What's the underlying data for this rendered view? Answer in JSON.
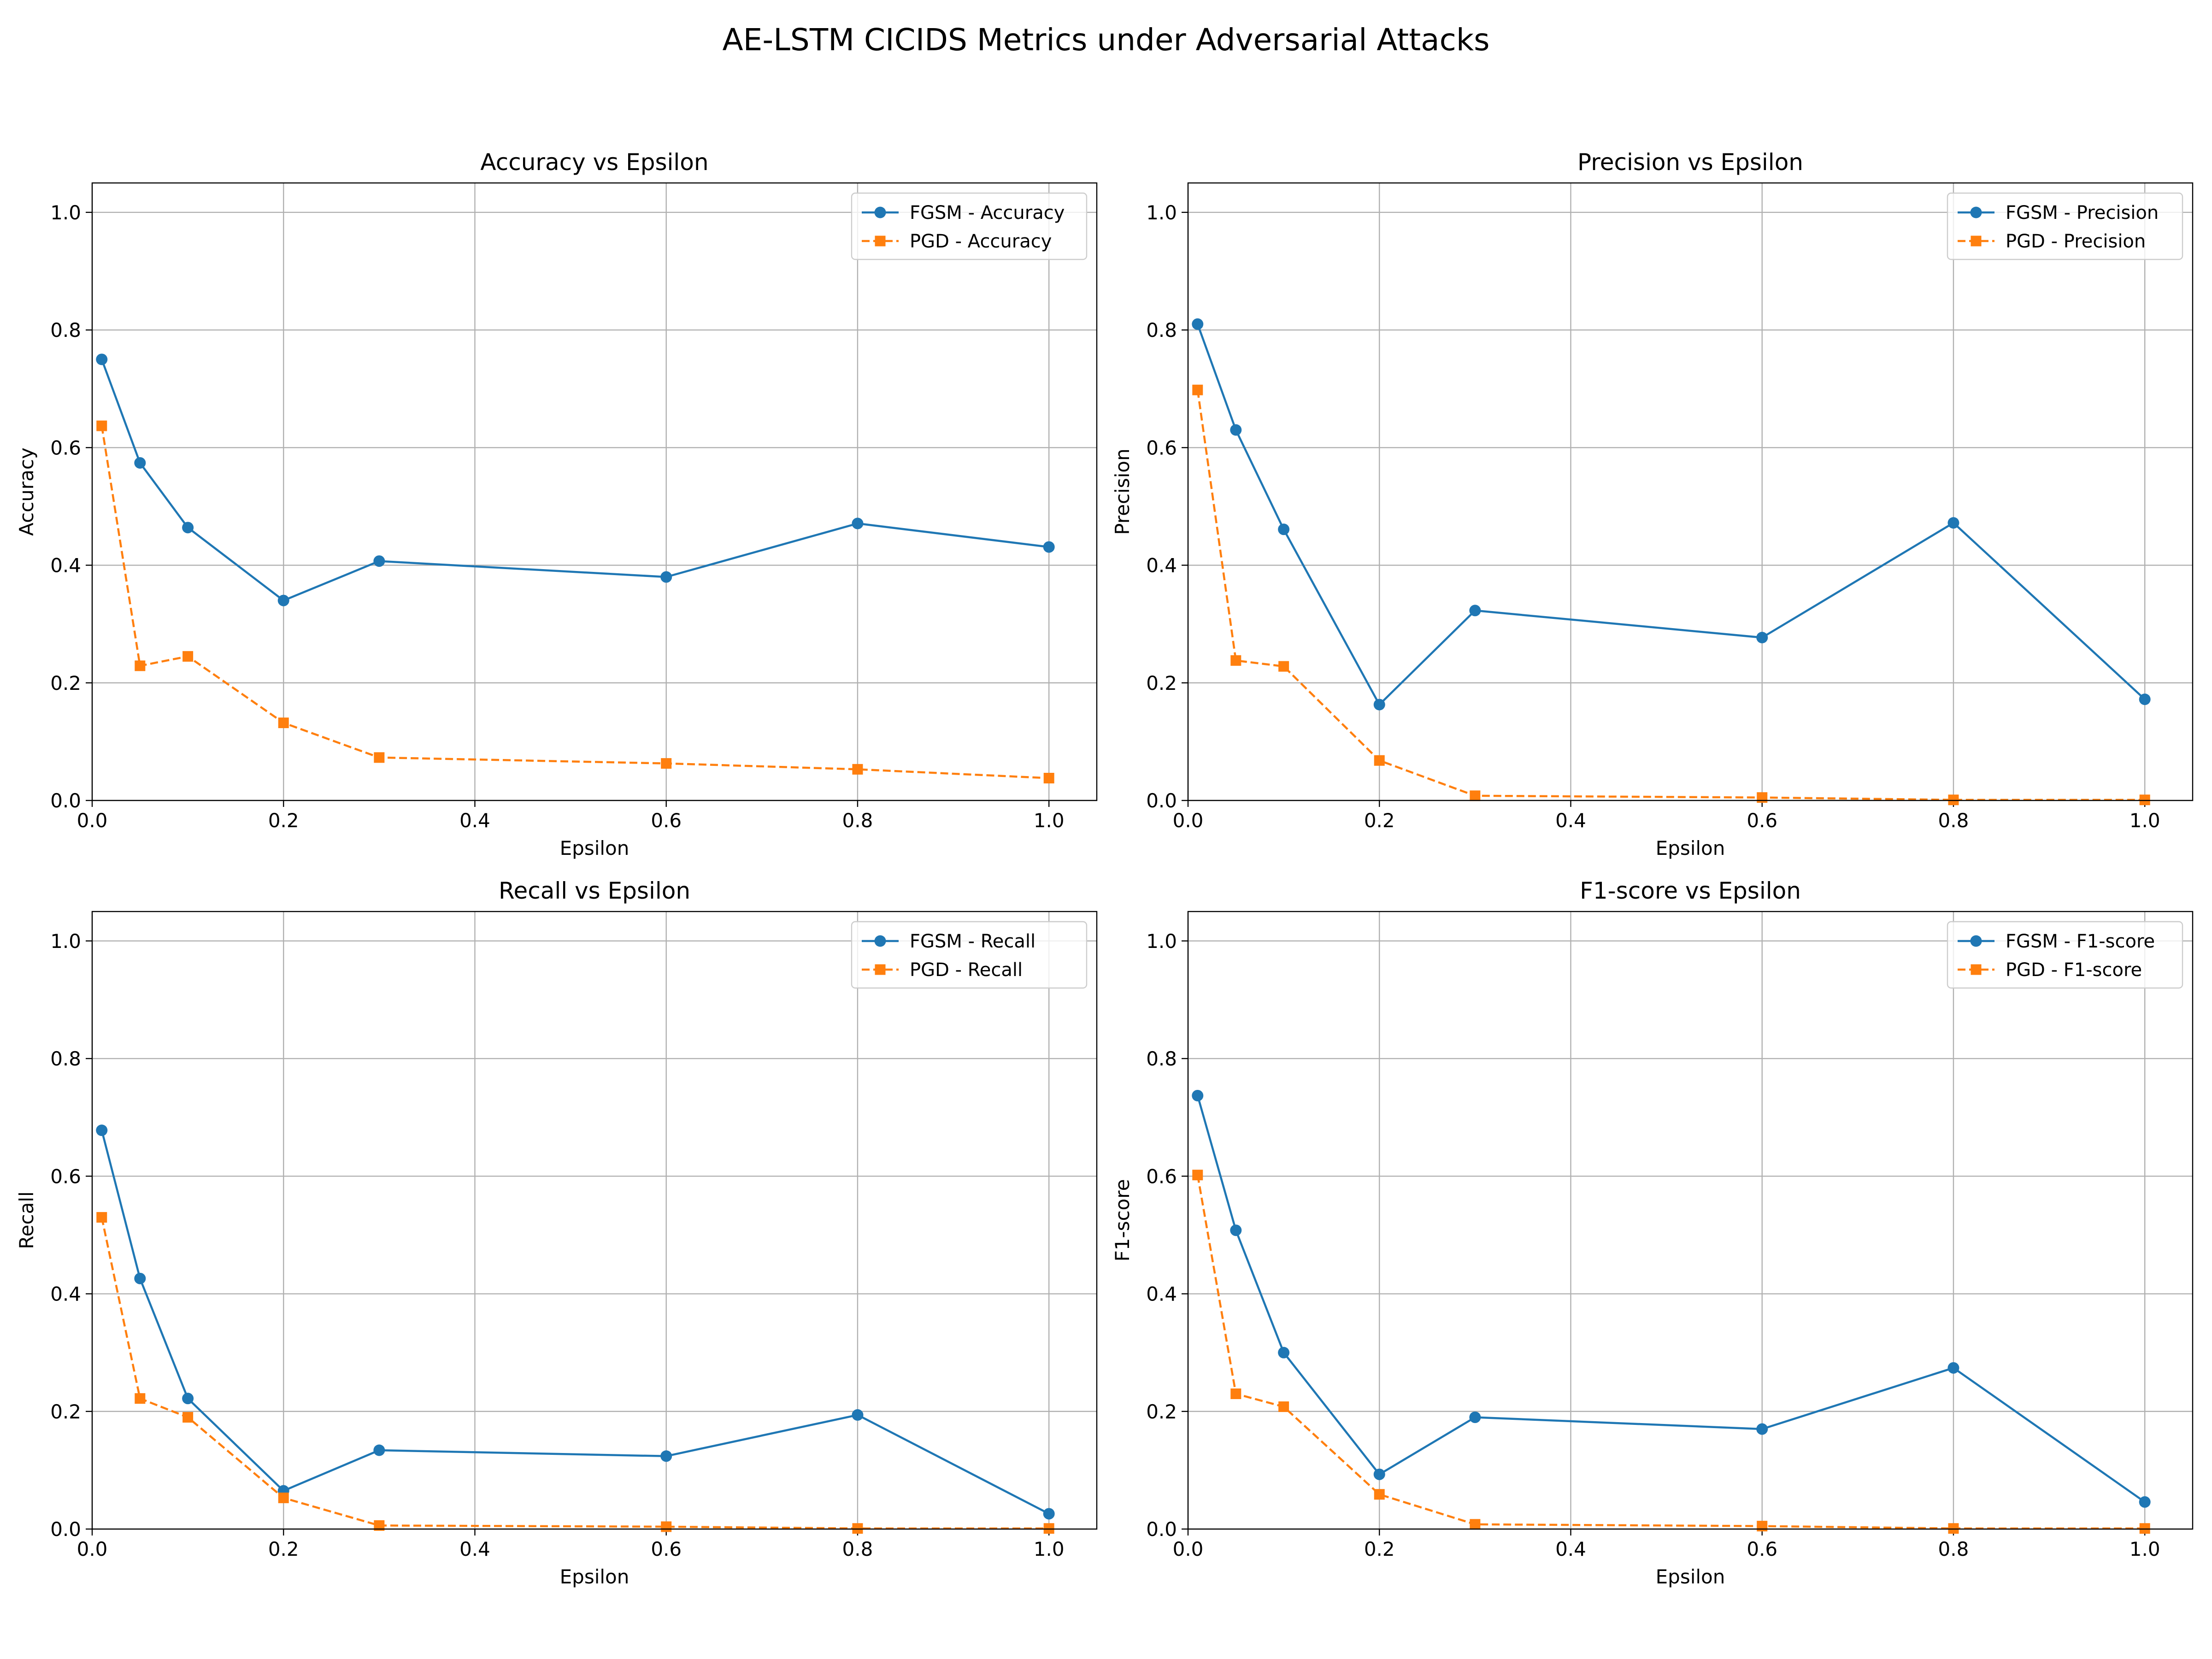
{
  "figure": {
    "title": "AE-LSTM CICIDS Metrics under Adversarial Attacks"
  },
  "colors": {
    "fgsm": "#1f77b4",
    "pgd": "#ff7f0e",
    "grid": "#b0b0b0",
    "axes": "#000000"
  },
  "chart_data": [
    {
      "type": "line",
      "title": "Accuracy vs Epsilon",
      "xlabel": "Epsilon",
      "ylabel": "Accuracy",
      "xlim": [
        0,
        1.05
      ],
      "ylim": [
        0,
        1.05
      ],
      "xticks": [
        0.0,
        0.2,
        0.4,
        0.6,
        0.8,
        1.0
      ],
      "xtick_labels": [
        "0.0",
        "0.2",
        "0.4",
        "0.6",
        "0.8",
        "1.0"
      ],
      "yticks": [
        0.0,
        0.2,
        0.4,
        0.6,
        0.8,
        1.0
      ],
      "ytick_labels": [
        "0.0",
        "0.2",
        "0.4",
        "0.6",
        "0.8",
        "1.0"
      ],
      "grid": true,
      "legend": "top-right",
      "x": [
        0.01,
        0.05,
        0.1,
        0.2,
        0.3,
        0.6,
        0.8,
        1.0
      ],
      "series": [
        {
          "name": "FGSM - Accuracy",
          "color": "#1f77b4",
          "marker": "circle",
          "linestyle": "solid",
          "values": [
            0.75,
            0.574,
            0.464,
            0.34,
            0.407,
            0.38,
            0.471,
            0.431
          ]
        },
        {
          "name": "PGD - Accuracy",
          "color": "#ff7f0e",
          "marker": "square",
          "linestyle": "dashed",
          "values": [
            0.637,
            0.229,
            0.245,
            0.132,
            0.073,
            0.063,
            0.053,
            0.038
          ]
        }
      ]
    },
    {
      "type": "line",
      "title": "Precision vs Epsilon",
      "xlabel": "Epsilon",
      "ylabel": "Precision",
      "xlim": [
        0,
        1.05
      ],
      "ylim": [
        0,
        1.05
      ],
      "xticks": [
        0.0,
        0.2,
        0.4,
        0.6,
        0.8,
        1.0
      ],
      "xtick_labels": [
        "0.0",
        "0.2",
        "0.4",
        "0.6",
        "0.8",
        "1.0"
      ],
      "yticks": [
        0.0,
        0.2,
        0.4,
        0.6,
        0.8,
        1.0
      ],
      "ytick_labels": [
        "0.0",
        "0.2",
        "0.4",
        "0.6",
        "0.8",
        "1.0"
      ],
      "grid": true,
      "legend": "top-right",
      "x": [
        0.01,
        0.05,
        0.1,
        0.2,
        0.3,
        0.6,
        0.8,
        1.0
      ],
      "series": [
        {
          "name": "FGSM - Precision",
          "color": "#1f77b4",
          "marker": "circle",
          "linestyle": "solid",
          "values": [
            0.81,
            0.63,
            0.461,
            0.163,
            0.323,
            0.277,
            0.472,
            0.172
          ]
        },
        {
          "name": "PGD - Precision",
          "color": "#ff7f0e",
          "marker": "square",
          "linestyle": "dashed",
          "values": [
            0.698,
            0.238,
            0.228,
            0.068,
            0.008,
            0.005,
            0.001,
            0.001
          ]
        }
      ]
    },
    {
      "type": "line",
      "title": "Recall vs Epsilon",
      "xlabel": "Epsilon",
      "ylabel": "Recall",
      "xlim": [
        0,
        1.05
      ],
      "ylim": [
        0,
        1.05
      ],
      "xticks": [
        0.0,
        0.2,
        0.4,
        0.6,
        0.8,
        1.0
      ],
      "xtick_labels": [
        "0.0",
        "0.2",
        "0.4",
        "0.6",
        "0.8",
        "1.0"
      ],
      "yticks": [
        0.0,
        0.2,
        0.4,
        0.6,
        0.8,
        1.0
      ],
      "ytick_labels": [
        "0.0",
        "0.2",
        "0.4",
        "0.6",
        "0.8",
        "1.0"
      ],
      "grid": true,
      "legend": "top-right",
      "x": [
        0.01,
        0.05,
        0.1,
        0.2,
        0.3,
        0.6,
        0.8,
        1.0
      ],
      "series": [
        {
          "name": "FGSM - Recall",
          "color": "#1f77b4",
          "marker": "circle",
          "linestyle": "solid",
          "values": [
            0.678,
            0.426,
            0.222,
            0.065,
            0.134,
            0.124,
            0.194,
            0.026
          ]
        },
        {
          "name": "PGD - Recall",
          "color": "#ff7f0e",
          "marker": "square",
          "linestyle": "dashed",
          "values": [
            0.53,
            0.222,
            0.19,
            0.053,
            0.006,
            0.004,
            0.001,
            0.001
          ]
        }
      ]
    },
    {
      "type": "line",
      "title": "F1-score vs Epsilon",
      "xlabel": "Epsilon",
      "ylabel": "F1-score",
      "xlim": [
        0,
        1.05
      ],
      "ylim": [
        0,
        1.05
      ],
      "xticks": [
        0.0,
        0.2,
        0.4,
        0.6,
        0.8,
        1.0
      ],
      "xtick_labels": [
        "0.0",
        "0.2",
        "0.4",
        "0.6",
        "0.8",
        "1.0"
      ],
      "yticks": [
        0.0,
        0.2,
        0.4,
        0.6,
        0.8,
        1.0
      ],
      "ytick_labels": [
        "0.0",
        "0.2",
        "0.4",
        "0.6",
        "0.8",
        "1.0"
      ],
      "grid": true,
      "legend": "top-right",
      "x": [
        0.01,
        0.05,
        0.1,
        0.2,
        0.3,
        0.6,
        0.8,
        1.0
      ],
      "series": [
        {
          "name": "FGSM - F1-score",
          "color": "#1f77b4",
          "marker": "circle",
          "linestyle": "solid",
          "values": [
            0.737,
            0.508,
            0.3,
            0.093,
            0.19,
            0.17,
            0.274,
            0.046
          ]
        },
        {
          "name": "PGD - F1-score",
          "color": "#ff7f0e",
          "marker": "square",
          "linestyle": "dashed",
          "values": [
            0.602,
            0.23,
            0.208,
            0.059,
            0.008,
            0.005,
            0.001,
            0.001
          ]
        }
      ]
    }
  ]
}
